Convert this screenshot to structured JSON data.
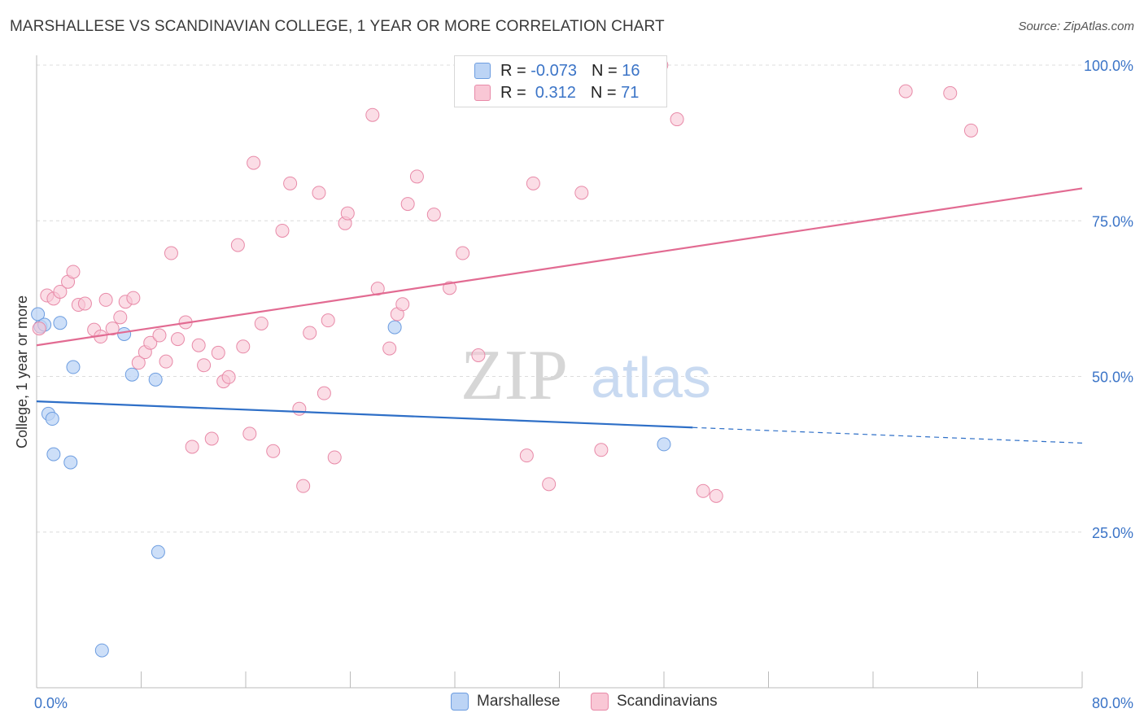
{
  "title": "MARSHALLESE VS SCANDINAVIAN COLLEGE, 1 YEAR OR MORE CORRELATION CHART",
  "source": "Source: ZipAtlas.com",
  "watermark": {
    "zip": "ZIP",
    "atlas": "atlas"
  },
  "legend": {
    "rows": [
      {
        "r_label": "R = ",
        "r_value": "-0.073",
        "n_label": "N = ",
        "n_value": "16"
      },
      {
        "r_label": "R = ",
        "r_value": " 0.312",
        "n_label": "N = ",
        "n_value": "71"
      }
    ]
  },
  "colors": {
    "marshallese_fill": "#bcd4f5",
    "marshallese_stroke": "#6d9de0",
    "marshallese_line": "#2e6fc7",
    "scandinavian_fill": "#f9c7d5",
    "scandinavian_stroke": "#e88aa8",
    "scandinavian_line": "#e26b92",
    "axis_label": "#3b74c7"
  },
  "chart_data": {
    "type": "scatter",
    "title": "MARSHALLESE VS SCANDINAVIAN COLLEGE, 1 YEAR OR MORE CORRELATION CHART",
    "xlabel": "",
    "ylabel": "College, 1 year or more",
    "xlim": [
      0,
      80
    ],
    "ylim": [
      0,
      100
    ],
    "x_tick_labels": [
      "0.0%",
      "80.0%"
    ],
    "y_ticks": [
      25,
      50,
      75,
      100
    ],
    "y_tick_labels": [
      "25.0%",
      "50.0%",
      "75.0%",
      "100.0%"
    ],
    "grid": true,
    "legend_placement": "bottom",
    "series": [
      {
        "name": "Marshallese",
        "r": -0.073,
        "n": 16,
        "points": [
          [
            0.1,
            60.0
          ],
          [
            0.3,
            58.0
          ],
          [
            0.6,
            58.3
          ],
          [
            1.8,
            58.6
          ],
          [
            0.9,
            44.0
          ],
          [
            1.2,
            43.2
          ],
          [
            1.3,
            37.5
          ],
          [
            2.6,
            36.2
          ],
          [
            2.8,
            51.5
          ],
          [
            6.7,
            56.8
          ],
          [
            7.3,
            50.3
          ],
          [
            9.1,
            49.5
          ],
          [
            27.4,
            57.9
          ],
          [
            9.3,
            21.8
          ],
          [
            5.0,
            6.0
          ],
          [
            48.0,
            39.1
          ]
        ],
        "trend": {
          "x_solid": [
            0,
            50.2
          ],
          "y_solid": [
            46.0,
            41.8
          ],
          "x_dashed": [
            50.2,
            80
          ],
          "y_dashed": [
            41.8,
            39.3
          ]
        }
      },
      {
        "name": "Scandinavians",
        "r": 0.312,
        "n": 71,
        "points": [
          [
            0.2,
            57.7
          ],
          [
            0.8,
            63.0
          ],
          [
            1.3,
            62.5
          ],
          [
            1.8,
            63.6
          ],
          [
            2.4,
            65.2
          ],
          [
            2.8,
            66.8
          ],
          [
            3.2,
            61.5
          ],
          [
            3.7,
            61.7
          ],
          [
            4.4,
            57.5
          ],
          [
            4.9,
            56.4
          ],
          [
            5.3,
            62.3
          ],
          [
            5.8,
            57.7
          ],
          [
            6.4,
            59.5
          ],
          [
            6.8,
            62.0
          ],
          [
            7.4,
            62.6
          ],
          [
            7.8,
            52.2
          ],
          [
            8.3,
            53.9
          ],
          [
            8.7,
            55.4
          ],
          [
            9.4,
            56.6
          ],
          [
            9.9,
            52.4
          ],
          [
            10.3,
            69.8
          ],
          [
            10.8,
            56.0
          ],
          [
            11.4,
            58.7
          ],
          [
            11.9,
            38.7
          ],
          [
            12.4,
            55.0
          ],
          [
            12.8,
            51.8
          ],
          [
            13.4,
            40.0
          ],
          [
            13.9,
            53.8
          ],
          [
            14.3,
            49.2
          ],
          [
            14.7,
            49.9
          ],
          [
            15.4,
            71.1
          ],
          [
            15.8,
            54.8
          ],
          [
            16.3,
            40.8
          ],
          [
            16.6,
            84.3
          ],
          [
            17.2,
            58.5
          ],
          [
            18.1,
            38.0
          ],
          [
            18.8,
            73.4
          ],
          [
            19.4,
            81.0
          ],
          [
            20.1,
            44.8
          ],
          [
            20.4,
            32.4
          ],
          [
            20.9,
            57.0
          ],
          [
            21.6,
            79.5
          ],
          [
            22.0,
            47.3
          ],
          [
            22.3,
            59.0
          ],
          [
            22.8,
            37.0
          ],
          [
            23.6,
            74.6
          ],
          [
            23.8,
            76.2
          ],
          [
            25.7,
            92.0
          ],
          [
            26.1,
            64.1
          ],
          [
            27.0,
            54.5
          ],
          [
            27.6,
            60.0
          ],
          [
            28.0,
            61.6
          ],
          [
            28.4,
            77.7
          ],
          [
            29.1,
            82.1
          ],
          [
            30.4,
            76.0
          ],
          [
            31.6,
            64.2
          ],
          [
            32.6,
            69.8
          ],
          [
            33.8,
            53.4
          ],
          [
            36.2,
            95.6
          ],
          [
            37.5,
            37.3
          ],
          [
            38.0,
            81.0
          ],
          [
            39.2,
            32.7
          ],
          [
            41.7,
            79.5
          ],
          [
            43.2,
            38.2
          ],
          [
            47.8,
            100.0
          ],
          [
            49.0,
            91.3
          ],
          [
            51.0,
            31.6
          ],
          [
            52.0,
            30.8
          ],
          [
            66.5,
            95.8
          ],
          [
            69.9,
            95.5
          ],
          [
            71.5,
            89.5
          ]
        ],
        "trend": {
          "x": [
            0,
            80
          ],
          "y": [
            55.0,
            80.2
          ]
        }
      }
    ]
  }
}
